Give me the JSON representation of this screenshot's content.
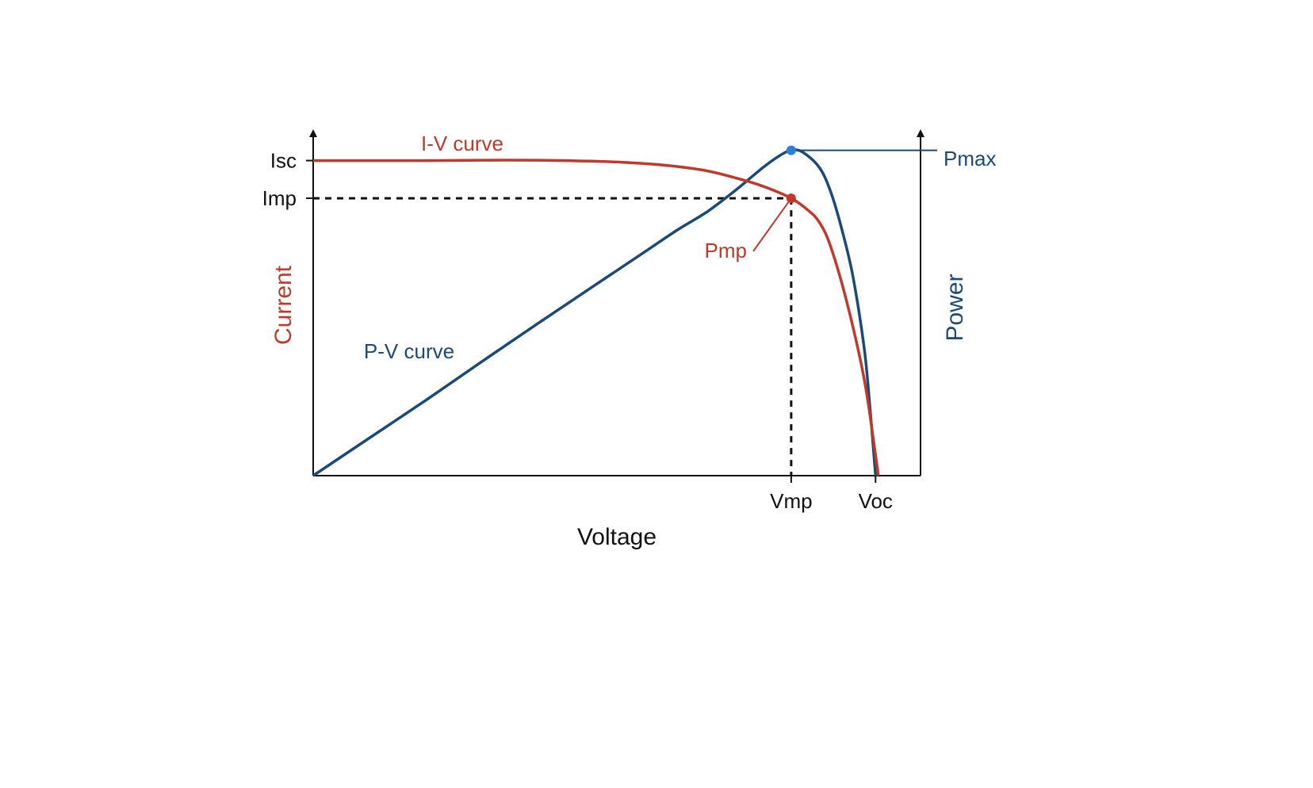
{
  "chart_data": {
    "type": "line",
    "xlabel": "Voltage",
    "ylabel_left": "Current",
    "ylabel_right": "Power",
    "x_ticks": [
      "Vmp",
      "Voc"
    ],
    "y_ticks": [
      "Isc",
      "Imp"
    ],
    "grid": false,
    "xlim": [
      0,
      1.08
    ],
    "ylim_current": [
      0,
      1.0
    ],
    "ylim_power": [
      0,
      1.0
    ],
    "reference_values": {
      "Isc": 0.92,
      "Imp": 0.81,
      "Vmp": 0.85,
      "Voc": 1.0,
      "Pmax": 0.95
    },
    "series": [
      {
        "name": "I-V curve",
        "axis": "current",
        "color": "#c0392b",
        "x": [
          0,
          0.1,
          0.2,
          0.3,
          0.4,
          0.5,
          0.55,
          0.6,
          0.65,
          0.7,
          0.75,
          0.8,
          0.85,
          0.88,
          0.9,
          0.92,
          0.95,
          0.98,
          1.0,
          1.005
        ],
        "y": [
          0.92,
          0.92,
          0.92,
          0.921,
          0.921,
          0.918,
          0.915,
          0.91,
          0.902,
          0.89,
          0.87,
          0.845,
          0.81,
          0.775,
          0.74,
          0.67,
          0.5,
          0.28,
          0.06,
          0.0
        ]
      },
      {
        "name": "P-V curve",
        "axis": "power",
        "color": "#1a4a7a",
        "x": [
          0,
          0.1,
          0.2,
          0.3,
          0.4,
          0.5,
          0.6,
          0.65,
          0.7,
          0.75,
          0.8,
          0.83,
          0.85,
          0.87,
          0.9,
          0.92,
          0.94,
          0.96,
          0.98,
          0.99,
          1.0
        ],
        "y": [
          0,
          0.11,
          0.22,
          0.333,
          0.445,
          0.555,
          0.665,
          0.72,
          0.77,
          0.832,
          0.9,
          0.935,
          0.95,
          0.945,
          0.9,
          0.83,
          0.72,
          0.58,
          0.37,
          0.2,
          0.0
        ]
      }
    ],
    "annotations": [
      {
        "text": "Pmax",
        "color": "#1a4a7a"
      },
      {
        "text": "Pmp",
        "color": "#c0392b"
      },
      {
        "text": "I-V curve",
        "color": "#c0392b"
      },
      {
        "text": "P-V curve",
        "color": "#1a4a7a"
      }
    ]
  }
}
